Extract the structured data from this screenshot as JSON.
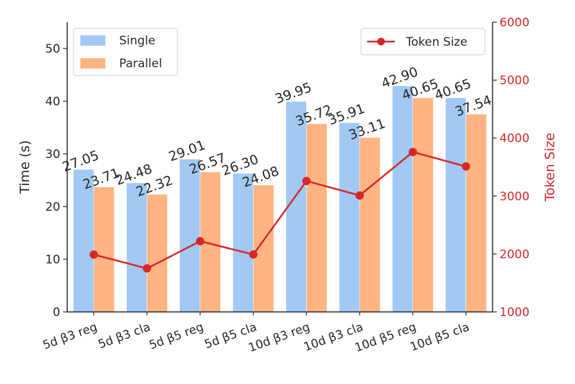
{
  "chart_data": {
    "type": "bar",
    "categories": [
      "5d β3 reg",
      "5d β3 cla",
      "5d β5 reg",
      "5d β5 cla",
      "10d β3 reg",
      "10d β3 cla",
      "10d β5 reg",
      "10d β5 cla"
    ],
    "series": [
      {
        "name": "Single",
        "color": "#a1c9f4",
        "values": [
          27.05,
          24.48,
          29.01,
          26.3,
          39.95,
          35.91,
          42.9,
          40.65
        ]
      },
      {
        "name": "Parallel",
        "color": "#ffb482",
        "values": [
          23.71,
          22.32,
          26.57,
          24.08,
          35.72,
          33.11,
          40.65,
          37.54
        ]
      }
    ],
    "value_labels": {
      "Single": [
        "27.05",
        "24.48",
        "29.01",
        "26.30",
        "39.95",
        "35.91",
        "42.90",
        "40.65"
      ],
      "Parallel": [
        "23.71",
        "22.32",
        "26.57",
        "24.08",
        "35.72",
        "33.11",
        "40.65",
        "37.54"
      ]
    },
    "line_series": {
      "name": "Token Size",
      "color": "#d62728",
      "axis": "right",
      "values": [
        1990,
        1750,
        2220,
        1990,
        3260,
        3010,
        3760,
        3510
      ]
    },
    "ylabel": "Time (s)",
    "y2label": "Token Size",
    "ylim": [
      0,
      55
    ],
    "y2lim": [
      1000,
      6000
    ],
    "yticks": [
      0,
      10,
      20,
      30,
      40,
      50
    ],
    "y2ticks": [
      1000,
      2000,
      3000,
      4000,
      5000,
      6000
    ],
    "legend_left": "top-left",
    "legend_right": "top-right",
    "grid": false
  }
}
